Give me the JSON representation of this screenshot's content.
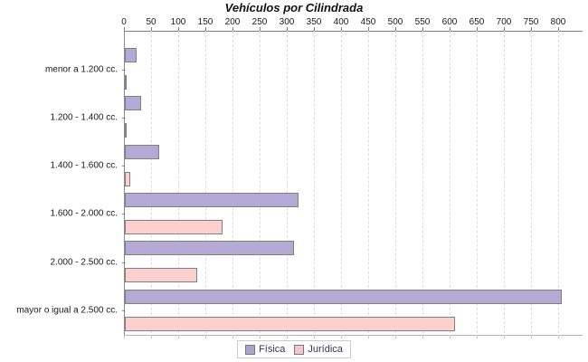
{
  "title": "Vehículos por Cilindrada",
  "chart_data": {
    "type": "bar",
    "orientation": "horizontal",
    "title": "Vehículos por Cilindrada",
    "categories": [
      "menor a 1.200 cc.",
      "1.200 - 1.400 cc.",
      "1.400 - 1.600 cc.",
      "1.600 - 2.000 cc.",
      "2.000 - 2.500 cc.",
      "mayor o igual a 2.500 cc."
    ],
    "series": [
      {
        "name": "Física",
        "color": "#b3aad5",
        "border_color": "#808080",
        "values": [
          22,
          30,
          63,
          320,
          312,
          805
        ]
      },
      {
        "name": "Jurídica",
        "color": "#fdd0cd",
        "border_color": "#808080",
        "values": [
          0,
          0,
          10,
          180,
          134,
          608
        ]
      }
    ],
    "x_ticks": [
      0,
      50,
      100,
      150,
      200,
      250,
      300,
      350,
      400,
      450,
      500,
      550,
      600,
      650,
      700,
      750,
      800
    ],
    "xlim": [
      0,
      843
    ],
    "grid": "vertical-dashed",
    "legend_position": "bottom-center"
  },
  "legend": {
    "items": [
      {
        "label": "Física",
        "color": "#aaa2cd"
      },
      {
        "label": "Jurídica",
        "color": "#f6c6ca"
      }
    ]
  },
  "colors": {
    "background": "#ffffff",
    "axis": "#808080",
    "gridline": "#dcdcdc",
    "title_text": "#111111",
    "legend_text": "#333366",
    "fisica_fill": "#b3aad5",
    "juridica_fill": "#fdd0cd",
    "bar_border": "#808080"
  }
}
